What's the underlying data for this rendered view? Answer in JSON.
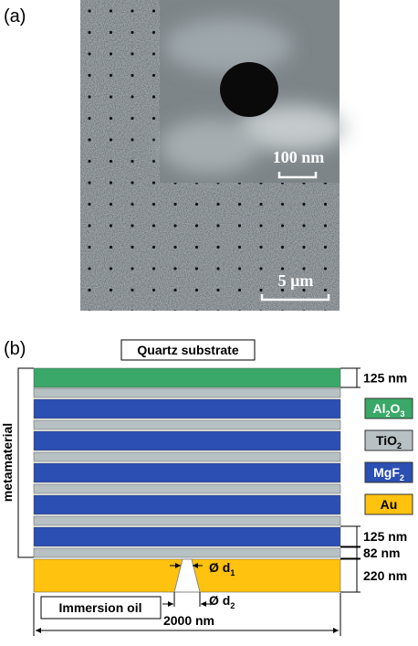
{
  "panel_a": {
    "label": "(a)",
    "inset_scale": "100 nm",
    "scale": "5 µm"
  },
  "panel_b": {
    "label": "(b)",
    "substrate": "Quartz substrate",
    "side_label": "metamaterial",
    "dimensions": [
      "125 nm",
      "125 nm",
      "82 nm",
      "220 nm"
    ],
    "legend": [
      {
        "parts": [
          "Al",
          "2",
          "O",
          "3"
        ],
        "color": "#3aa868",
        "text_color": "#ffffff"
      },
      {
        "parts": [
          "TiO",
          "2"
        ],
        "color": "#b7c1c3",
        "text_color": "#000000"
      },
      {
        "parts": [
          "MgF",
          "2"
        ],
        "color": "#2b4fb2",
        "text_color": "#ffffff"
      },
      {
        "parts": [
          "Au"
        ],
        "color": "#ffc20e",
        "text_color": "#000000"
      }
    ],
    "hole_labels": [
      {
        "parts": [
          "Ø d",
          "1"
        ]
      },
      {
        "parts": [
          "Ø d",
          "2"
        ]
      }
    ],
    "medium": "Immersion oil",
    "width": "2000 nm"
  }
}
